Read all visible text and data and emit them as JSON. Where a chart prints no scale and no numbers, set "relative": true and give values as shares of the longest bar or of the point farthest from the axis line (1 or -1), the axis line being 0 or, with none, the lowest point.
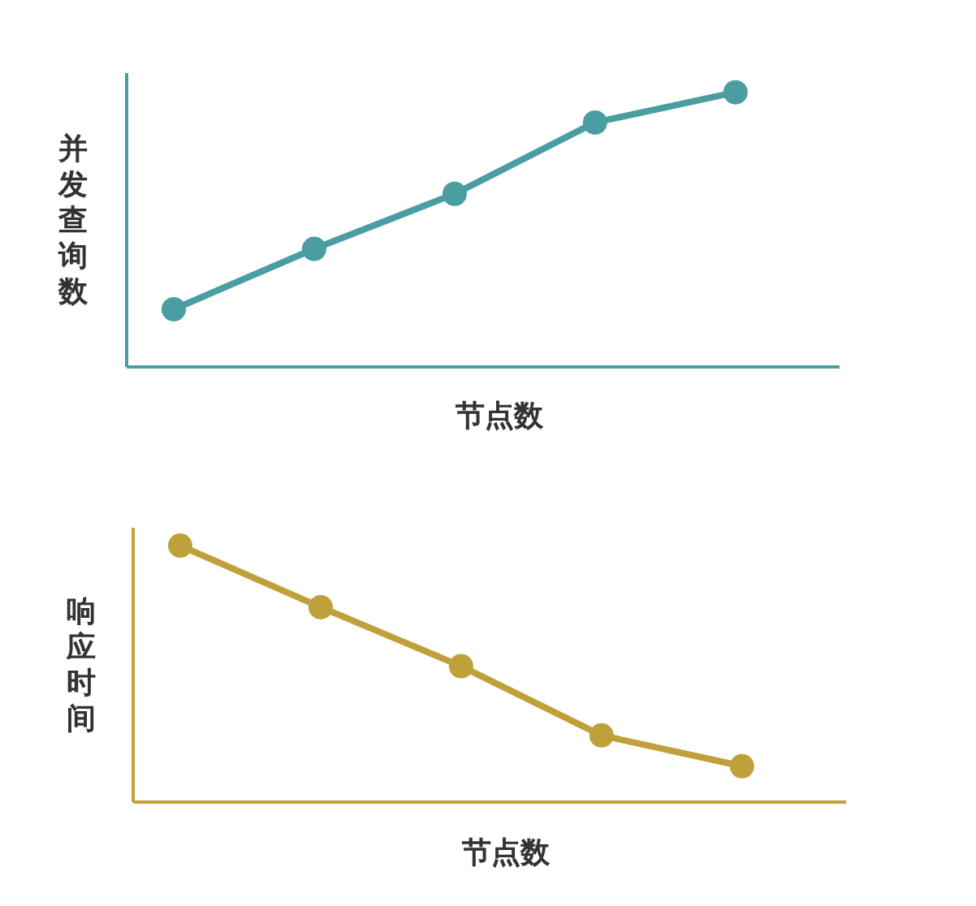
{
  "chart_data": [
    {
      "type": "line",
      "relative": true,
      "ylabel": "并发查询数",
      "xlabel": "节点数",
      "categories": [
        null,
        null,
        null,
        null,
        null
      ],
      "marker": "circle",
      "series": [
        {
          "color": "#4a9ea1",
          "values": [
            0.21,
            0.43,
            0.63,
            0.89,
            1
          ]
        }
      ]
    },
    {
      "type": "line",
      "relative": true,
      "ylabel": "响应时间",
      "xlabel": "节点数",
      "categories": [
        null,
        null,
        null,
        null,
        null
      ],
      "marker": "circle",
      "series": [
        {
          "color": "#c0a03a",
          "values": [
            1,
            0.76,
            0.53,
            0.26,
            0.14
          ]
        }
      ]
    }
  ]
}
